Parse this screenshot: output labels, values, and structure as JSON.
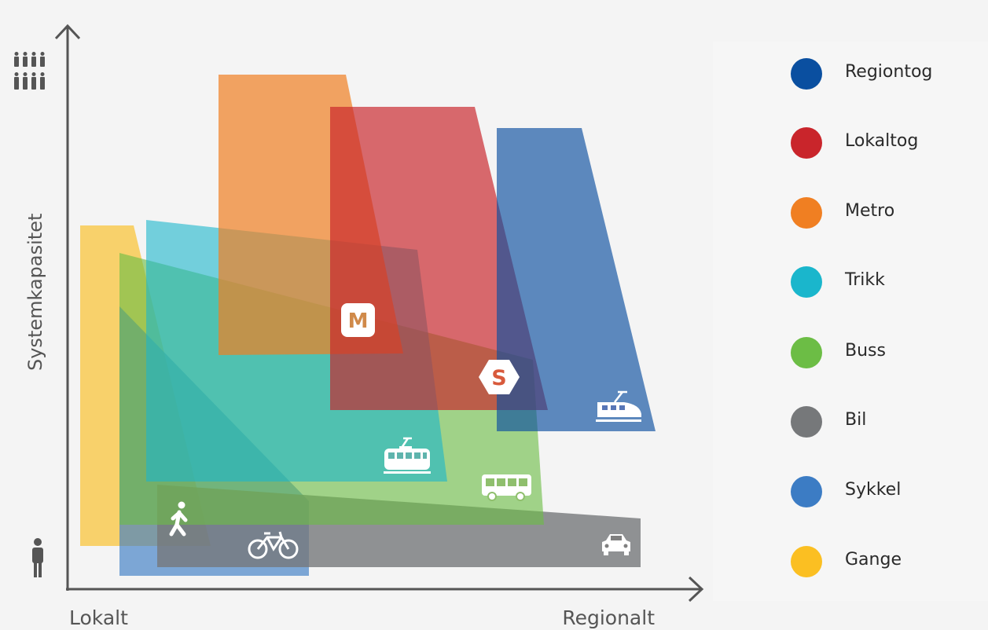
{
  "axes": {
    "x_left_label": "Lokalt",
    "x_right_label": "Regionalt",
    "y_label": "Systemkapasitet"
  },
  "modes": [
    {
      "key": "regiontog",
      "label": "Regiontog",
      "color": "#0a4fa0"
    },
    {
      "key": "lokaltog",
      "label": "Lokaltog",
      "color": "#c9252b"
    },
    {
      "key": "metro",
      "label": "Metro",
      "color": "#f07f22"
    },
    {
      "key": "trikk",
      "label": "Trikk",
      "color": "#1ab6cc"
    },
    {
      "key": "buss",
      "label": "Buss",
      "color": "#6cbd45"
    },
    {
      "key": "bil",
      "label": "Bil",
      "color": "#76787a"
    },
    {
      "key": "sykkel",
      "label": "Sykkel",
      "color": "#3c7cc4"
    },
    {
      "key": "gange",
      "label": "Gange",
      "color": "#fbbf22"
    }
  ],
  "badges": {
    "metro": "M",
    "lokaltog": "S"
  }
}
